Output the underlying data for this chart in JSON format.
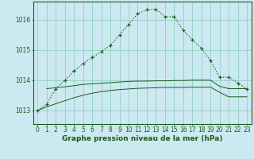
{
  "title": "Graphe pression niveau de la mer (hPa)",
  "background_color": "#cce8f0",
  "grid_color": "#88ccbb",
  "line_color": "#1a5c1a",
  "x_ticks": [
    0,
    1,
    2,
    3,
    4,
    5,
    6,
    7,
    8,
    9,
    10,
    11,
    12,
    13,
    14,
    15,
    16,
    17,
    18,
    19,
    20,
    21,
    22,
    23
  ],
  "y_ticks": [
    1013,
    1014,
    1015,
    1016
  ],
  "ylim": [
    1012.55,
    1016.6
  ],
  "xlim": [
    -0.5,
    23.5
  ],
  "series_flat_upper": [
    null,
    1013.72,
    1013.75,
    1013.78,
    1013.82,
    1013.86,
    1013.88,
    1013.9,
    1013.92,
    1013.94,
    1013.96,
    1013.97,
    1013.97,
    1013.98,
    1013.98,
    1013.99,
    1013.99,
    1014.0,
    1014.0,
    1014.0,
    1013.8,
    1013.72,
    1013.72,
    1013.72
  ],
  "series_flat_lower": [
    1013.0,
    1013.12,
    1013.22,
    1013.32,
    1013.42,
    1013.5,
    1013.57,
    1013.62,
    1013.66,
    1013.69,
    1013.71,
    1013.73,
    1013.74,
    1013.75,
    1013.76,
    1013.76,
    1013.76,
    1013.77,
    1013.77,
    1013.77,
    1013.6,
    1013.45,
    1013.45,
    1013.45
  ],
  "main_series": [
    1013.0,
    1013.2,
    1013.72,
    1014.0,
    1014.3,
    1014.55,
    1014.75,
    1014.95,
    1015.15,
    1015.5,
    1015.85,
    1016.2,
    1016.33,
    1016.35,
    1016.1,
    1016.1,
    1015.65,
    1015.35,
    1015.05,
    1014.65,
    1014.1,
    1014.1,
    1013.9,
    1013.72
  ],
  "tick_fontsize": 5.5,
  "title_fontsize": 6.5
}
